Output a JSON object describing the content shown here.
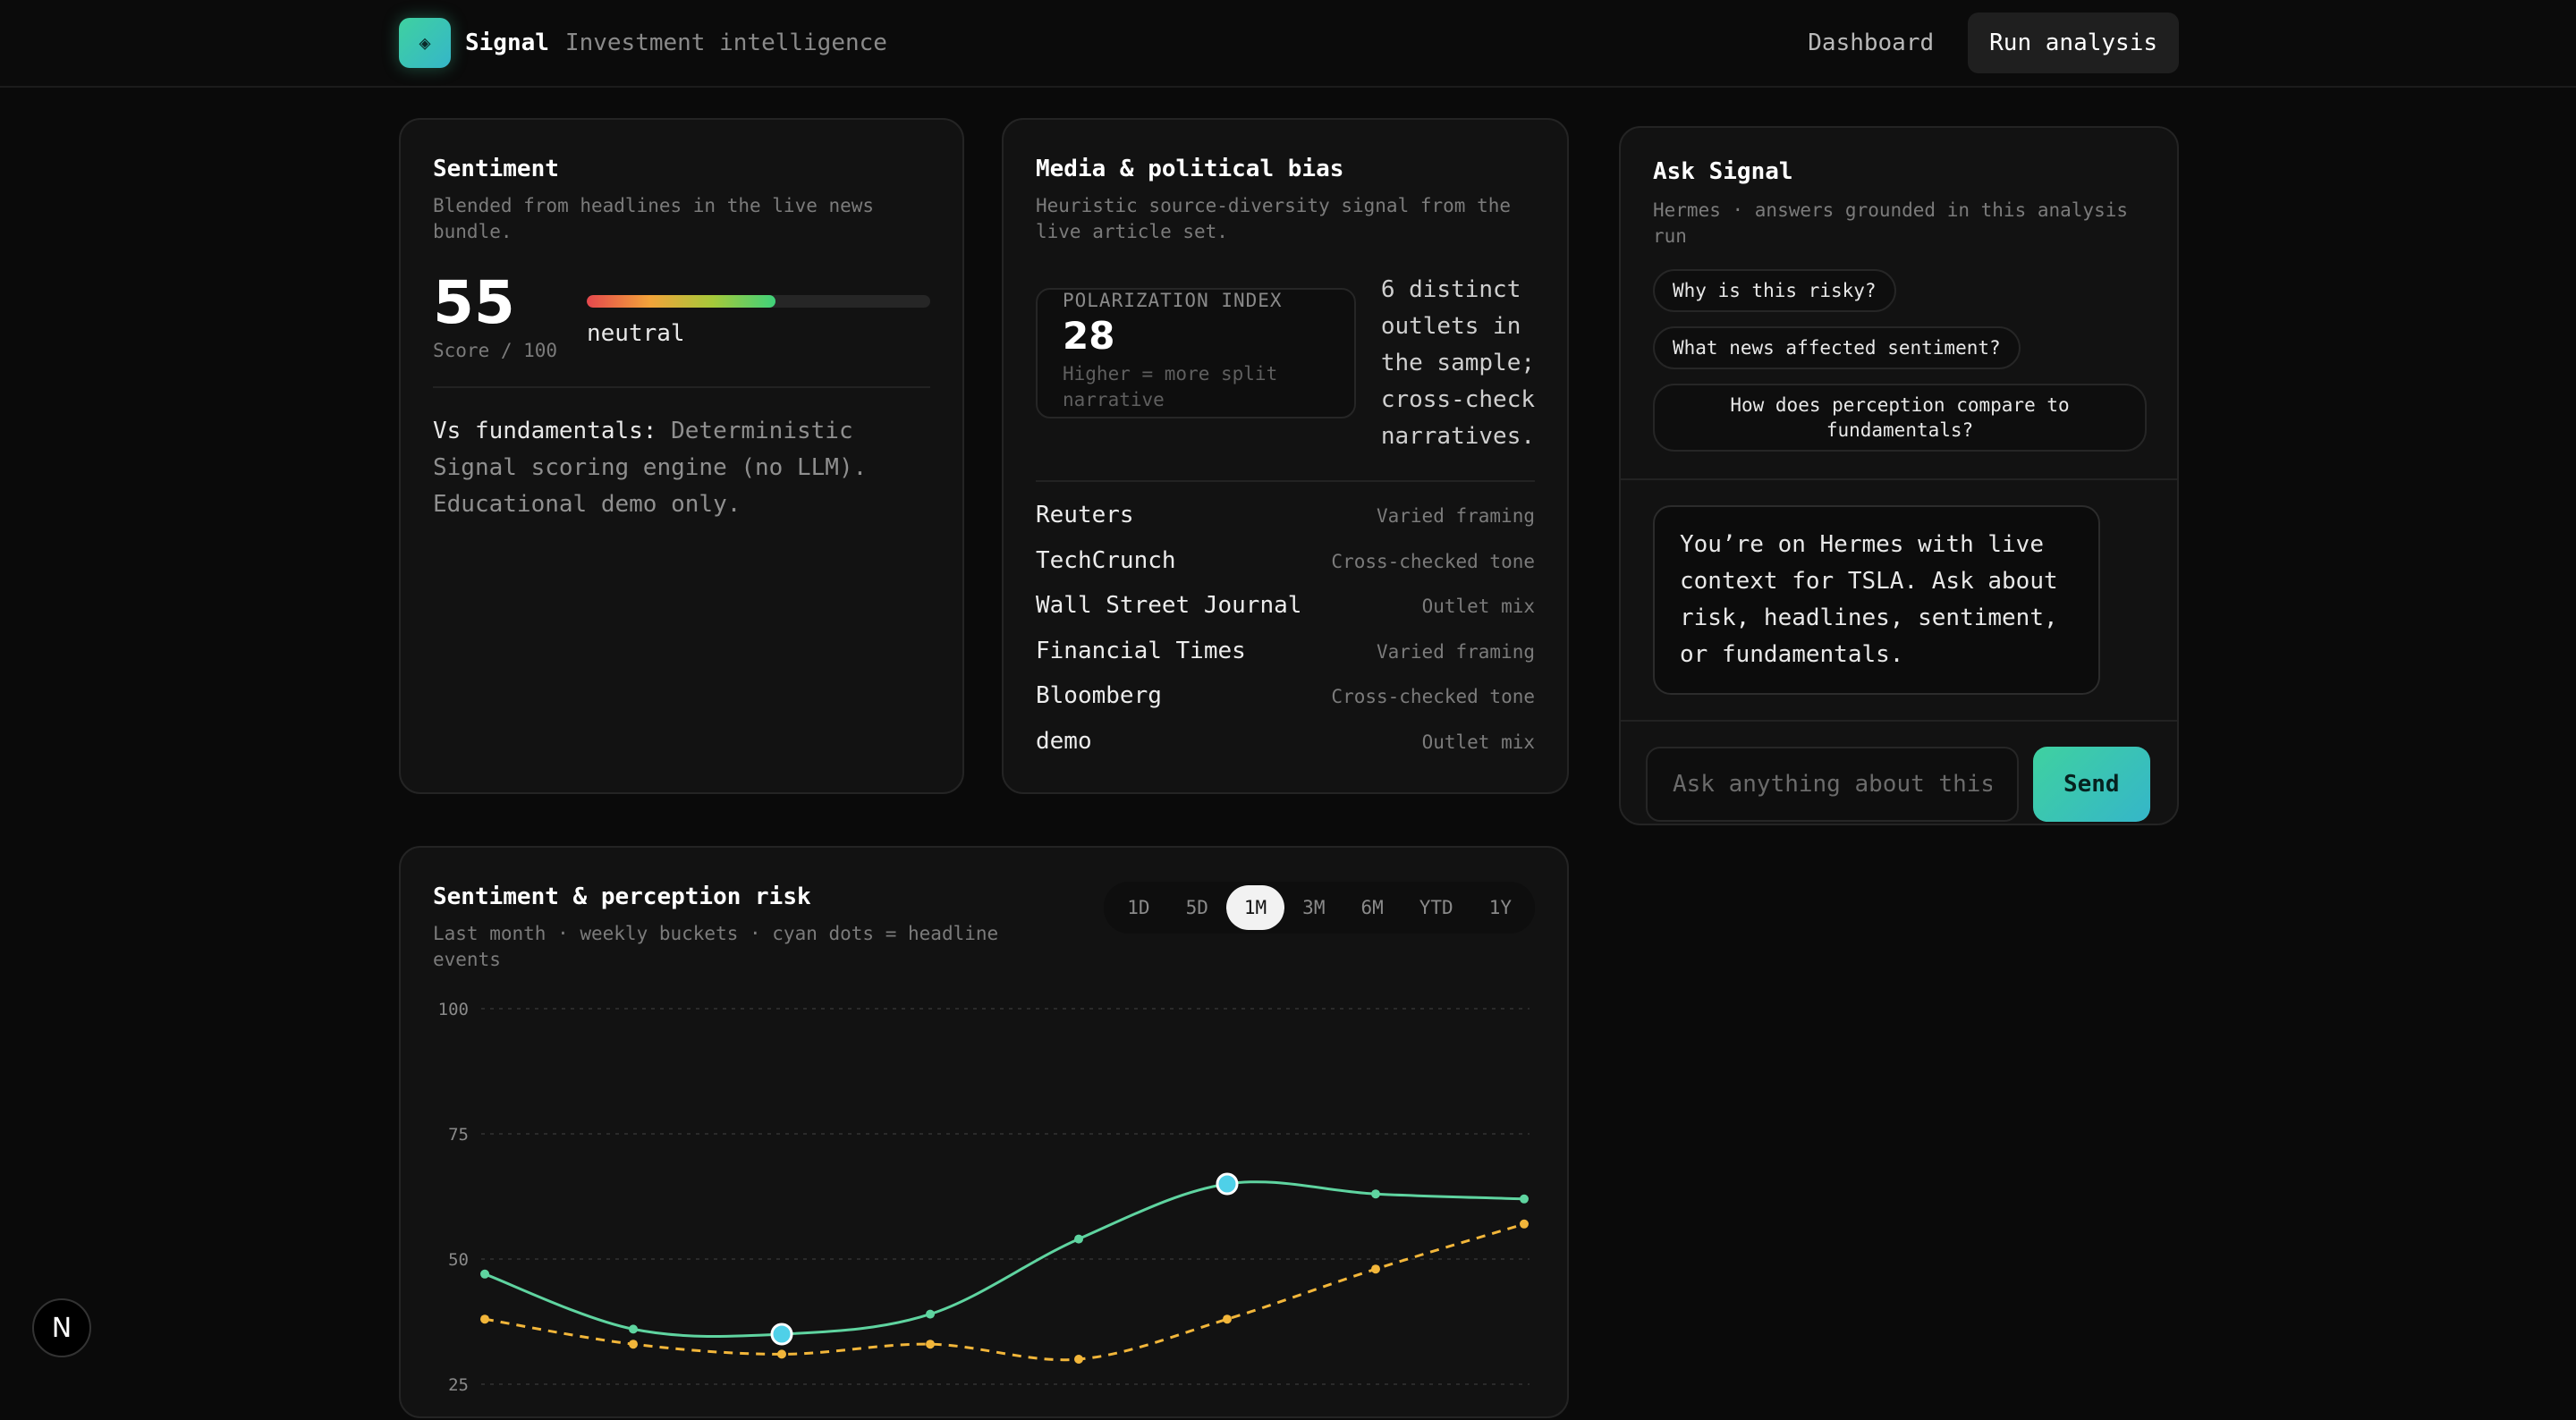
{
  "brand": {
    "logo_icon": "diamond-icon",
    "name": "Signal",
    "tagline": "Investment intelligence"
  },
  "nav": {
    "dashboard": "Dashboard",
    "run": "Run analysis"
  },
  "sentiment": {
    "title": "Sentiment",
    "subtitle": "Blended from headlines in the live news bundle.",
    "score": "55",
    "score_label": "Score / 100",
    "score_fraction": 0.55,
    "label": "neutral",
    "vs_label": "Vs fundamentals:",
    "vs_text": "Deterministic Signal scoring engine (no LLM). Educational demo only."
  },
  "media": {
    "title": "Media & political bias",
    "subtitle": "Heuristic source-diversity signal from the live article set.",
    "polar_label": "POLARIZATION INDEX",
    "polar_value": "28",
    "polar_hint": "Higher = more split narrative",
    "outlets_note": "6 distinct outlets in the sample; cross-check narratives.",
    "outlets": [
      {
        "name": "Reuters",
        "tag": "Varied framing"
      },
      {
        "name": "TechCrunch",
        "tag": "Cross-checked tone"
      },
      {
        "name": "Wall Street Journal",
        "tag": "Outlet mix"
      },
      {
        "name": "Financial Times",
        "tag": "Varied framing"
      },
      {
        "name": "Bloomberg",
        "tag": "Cross-checked tone"
      },
      {
        "name": "demo",
        "tag": "Outlet mix"
      }
    ]
  },
  "ask": {
    "title": "Ask Signal",
    "subtitle": "Hermes · answers grounded in this analysis run",
    "chips": [
      "Why is this risky?",
      "What news affected sentiment?",
      "How does perception compare to fundamentals?"
    ],
    "message": "You’re on Hermes with live context for TSLA. Ask about risk, headlines, sentiment, or fundamentals.",
    "placeholder": "Ask anything about this",
    "send": "Send"
  },
  "chart": {
    "title": "Sentiment & perception risk",
    "subtitle": "Last month · weekly buckets · cyan dots = headline events",
    "ranges": [
      "1D",
      "5D",
      "1M",
      "3M",
      "6M",
      "YTD",
      "1Y"
    ],
    "active_range": "1M"
  },
  "chart_data": {
    "type": "line",
    "title": "Sentiment & perception risk",
    "ylim": [
      0,
      100
    ],
    "yticks": [
      100,
      75,
      50,
      25
    ],
    "grid": true,
    "x": [
      1,
      2,
      3,
      4,
      5,
      6,
      7,
      8
    ],
    "series": [
      {
        "values": [
          47,
          36,
          35,
          39,
          54,
          65,
          63,
          62
        ],
        "color": "#5fd4a0",
        "style": "solid"
      },
      {
        "values": [
          38,
          33,
          31,
          33,
          30,
          38,
          48,
          57
        ],
        "color": "#f2b63a",
        "style": "dashed"
      }
    ],
    "headline_events": [
      {
        "x": 3,
        "value": 35
      },
      {
        "x": 6,
        "value": 65
      }
    ],
    "event_color": "#4fd0e8"
  },
  "floating": {
    "badge": "N"
  }
}
